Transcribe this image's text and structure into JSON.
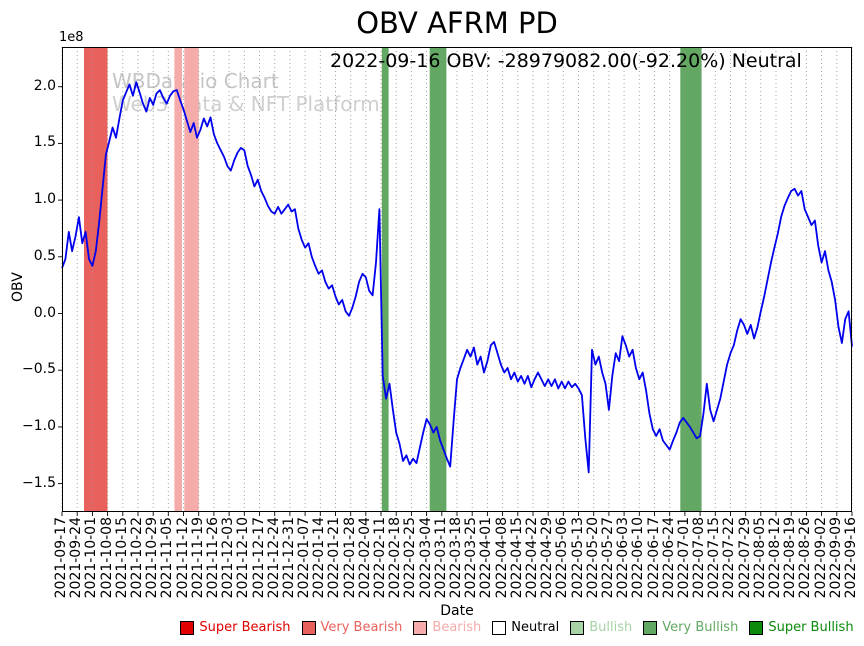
{
  "chart_data": {
    "type": "line",
    "title": "OBV AFRM PD",
    "annotation": "2022-09-16 OBV: -28979082.00(-92.20%) Neutral",
    "watermark": [
      "WBData.io Chart",
      "Web3 Data & NFT Platform"
    ],
    "xlabel": "Date",
    "ylabel": "OBV",
    "y_offset_label": "1e8",
    "ylim": [
      -1.75,
      2.35
    ],
    "ytick_values": [
      2.0,
      1.5,
      1.0,
      0.5,
      0.0,
      -0.5,
      -1.0,
      -1.5
    ],
    "ytick_labels": [
      "2.0",
      "1.5",
      "1.0",
      "0.5",
      "0.0",
      "−0.5",
      "−1.0",
      "−1.5"
    ],
    "x_tick_labels": [
      "2021-09-17",
      "2021-09-24",
      "2021-10-01",
      "2021-10-08",
      "2021-10-15",
      "2021-10-22",
      "2021-10-29",
      "2021-11-05",
      "2021-11-12",
      "2021-11-19",
      "2021-11-26",
      "2021-12-03",
      "2021-12-10",
      "2021-12-17",
      "2021-12-24",
      "2021-12-31",
      "2022-01-07",
      "2022-01-14",
      "2022-01-21",
      "2022-01-28",
      "2022-02-04",
      "2022-02-11",
      "2022-02-18",
      "2022-02-25",
      "2022-03-04",
      "2022-03-11",
      "2022-03-18",
      "2022-03-25",
      "2022-04-01",
      "2022-04-08",
      "2022-04-15",
      "2022-04-22",
      "2022-04-29",
      "2022-05-06",
      "2022-05-13",
      "2022-05-20",
      "2022-05-27",
      "2022-06-03",
      "2022-06-10",
      "2022-06-17",
      "2022-06-24",
      "2022-07-01",
      "2022-07-08",
      "2022-07-15",
      "2022-07-22",
      "2022-07-29",
      "2022-08-05",
      "2022-08-12",
      "2022-08-19",
      "2022-08-26",
      "2022-09-02",
      "2022-09-09",
      "2022-09-16"
    ],
    "line_color": "#0000ee",
    "grid_color": "#9a9a9a",
    "levels": {
      "super_bearish": {
        "label": "Super Bearish",
        "color": "#e00000"
      },
      "very_bearish": {
        "label": "Very Bearish",
        "color": "#e9615c"
      },
      "bearish": {
        "label": "Bearish",
        "color": "#f6abab"
      },
      "neutral": {
        "label": "Neutral",
        "color": "#ffffff",
        "text_color": "#000000"
      },
      "bullish": {
        "label": "Bullish",
        "color": "#a7d3a7"
      },
      "very_bullish": {
        "label": "Very Bullish",
        "color": "#62a862"
      },
      "super_bullish": {
        "label": "Super Bullish",
        "color": "#0b8a0b"
      }
    },
    "legend_order": [
      "super_bearish",
      "very_bearish",
      "bearish",
      "neutral",
      "bullish",
      "very_bullish",
      "super_bullish"
    ],
    "bands": [
      {
        "from": 1.45,
        "to": 3.0,
        "level": "very_bearish"
      },
      {
        "from": 7.4,
        "to": 7.9,
        "level": "bearish"
      },
      {
        "from": 8.05,
        "to": 9.0,
        "level": "bearish"
      },
      {
        "from": 21.05,
        "to": 21.5,
        "level": "very_bullish"
      },
      {
        "from": 24.2,
        "to": 25.3,
        "level": "very_bullish"
      },
      {
        "from": 40.7,
        "to": 42.1,
        "level": "very_bullish"
      }
    ],
    "values_1e8": [
      0.4,
      0.48,
      0.72,
      0.55,
      0.68,
      0.85,
      0.62,
      0.72,
      0.48,
      0.42,
      0.55,
      0.8,
      1.1,
      1.4,
      1.52,
      1.64,
      1.55,
      1.72,
      1.88,
      1.95,
      2.02,
      1.92,
      2.04,
      1.95,
      1.85,
      1.78,
      1.9,
      1.84,
      1.94,
      1.97,
      1.9,
      1.85,
      1.92,
      1.96,
      1.97,
      1.88,
      1.8,
      1.7,
      1.6,
      1.68,
      1.55,
      1.62,
      1.72,
      1.65,
      1.73,
      1.58,
      1.5,
      1.44,
      1.38,
      1.3,
      1.26,
      1.35,
      1.42,
      1.46,
      1.44,
      1.3,
      1.22,
      1.12,
      1.18,
      1.08,
      1.02,
      0.95,
      0.9,
      0.88,
      0.94,
      0.88,
      0.92,
      0.96,
      0.9,
      0.92,
      0.75,
      0.65,
      0.58,
      0.62,
      0.5,
      0.42,
      0.35,
      0.38,
      0.28,
      0.22,
      0.25,
      0.15,
      0.08,
      0.12,
      0.02,
      -0.02,
      0.05,
      0.15,
      0.28,
      0.35,
      0.32,
      0.2,
      0.16,
      0.45,
      0.92,
      -0.55,
      -0.75,
      -0.62,
      -0.85,
      -1.05,
      -1.15,
      -1.3,
      -1.25,
      -1.33,
      -1.28,
      -1.32,
      -1.18,
      -1.05,
      -0.93,
      -0.98,
      -1.05,
      -1.0,
      -1.12,
      -1.2,
      -1.28,
      -1.35,
      -0.95,
      -0.58,
      -0.48,
      -0.4,
      -0.32,
      -0.38,
      -0.3,
      -0.45,
      -0.38,
      -0.52,
      -0.42,
      -0.28,
      -0.25,
      -0.35,
      -0.45,
      -0.52,
      -0.48,
      -0.58,
      -0.52,
      -0.6,
      -0.55,
      -0.62,
      -0.55,
      -0.65,
      -0.58,
      -0.52,
      -0.58,
      -0.64,
      -0.58,
      -0.64,
      -0.58,
      -0.66,
      -0.6,
      -0.66,
      -0.6,
      -0.65,
      -0.62,
      -0.66,
      -0.72,
      -1.1,
      -1.4,
      -0.32,
      -0.45,
      -0.38,
      -0.52,
      -0.62,
      -0.85,
      -0.55,
      -0.35,
      -0.42,
      -0.2,
      -0.28,
      -0.38,
      -0.32,
      -0.48,
      -0.58,
      -0.52,
      -0.68,
      -0.88,
      -1.02,
      -1.08,
      -1.02,
      -1.12,
      -1.16,
      -1.2,
      -1.12,
      -1.05,
      -0.96,
      -0.92,
      -0.96,
      -1.0,
      -1.05,
      -1.1,
      -1.08,
      -0.88,
      -0.62,
      -0.85,
      -0.95,
      -0.85,
      -0.75,
      -0.6,
      -0.45,
      -0.35,
      -0.28,
      -0.15,
      -0.05,
      -0.1,
      -0.18,
      -0.1,
      -0.22,
      -0.12,
      0.02,
      0.15,
      0.3,
      0.45,
      0.58,
      0.7,
      0.85,
      0.95,
      1.02,
      1.08,
      1.1,
      1.04,
      1.08,
      0.92,
      0.85,
      0.78,
      0.82,
      0.6,
      0.45,
      0.55,
      0.38,
      0.28,
      0.12,
      -0.12,
      -0.26,
      -0.05,
      0.02,
      -0.29
    ]
  }
}
